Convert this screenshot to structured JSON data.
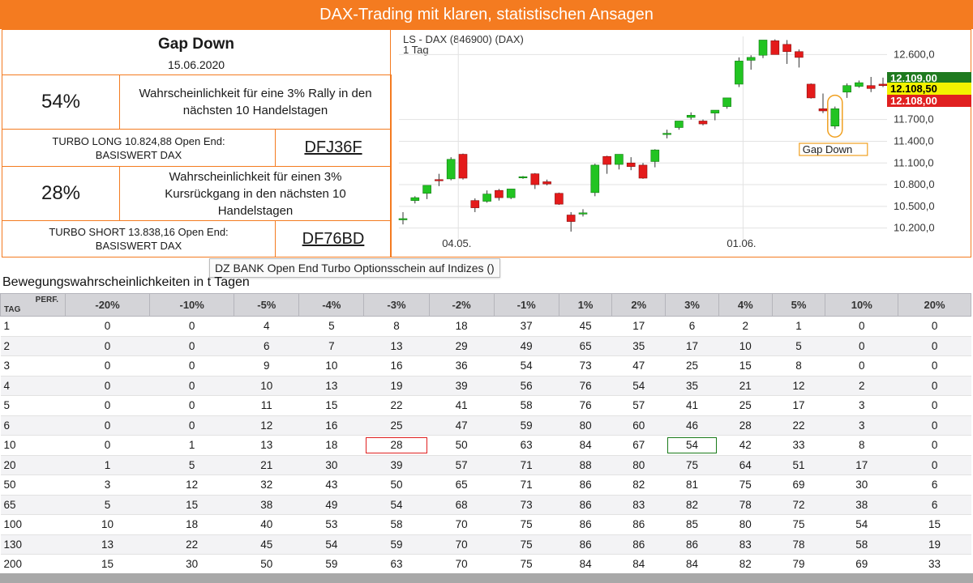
{
  "banner": {
    "title": "DAX-Trading mit klaren, statistischen Ansagen"
  },
  "summary": {
    "signal": "Gap Down",
    "date": "15.06.2020",
    "long": {
      "percent": "54%",
      "text": "Wahrscheinlichkeit für eine 3% Rally in den nächsten 10 Handelstagen",
      "product": "TURBO LONG 10.824,88 Open End: BASISWERT DAX",
      "wkn": "DFJ36F"
    },
    "short": {
      "percent": "28%",
      "text": "Wahrscheinlichkeit für einen 3% Kursrückgang in den nächsten 10 Handelstagen",
      "product": "TURBO SHORT 13.838,16 Open End: BASISWERT DAX",
      "wkn": "DF76BD"
    }
  },
  "tooltip": "DZ BANK Open End Turbo Optionsschein auf Indizes ()",
  "table": {
    "title": "Bewegungswahrscheinlichkeiten in t Tagen",
    "corner_top": "PERF.",
    "corner_bottom": "TAG",
    "columns": [
      "-20%",
      "-10%",
      "-5%",
      "-4%",
      "-3%",
      "-2%",
      "-1%",
      "1%",
      "2%",
      "3%",
      "4%",
      "5%",
      "10%",
      "20%"
    ],
    "rows": [
      {
        "tag": "1",
        "values": [
          "0",
          "0",
          "4",
          "5",
          "8",
          "18",
          "37",
          "45",
          "17",
          "6",
          "2",
          "1",
          "0",
          "0"
        ]
      },
      {
        "tag": "2",
        "values": [
          "0",
          "0",
          "6",
          "7",
          "13",
          "29",
          "49",
          "65",
          "35",
          "17",
          "10",
          "5",
          "0",
          "0"
        ]
      },
      {
        "tag": "3",
        "values": [
          "0",
          "0",
          "9",
          "10",
          "16",
          "36",
          "54",
          "73",
          "47",
          "25",
          "15",
          "8",
          "0",
          "0"
        ]
      },
      {
        "tag": "4",
        "values": [
          "0",
          "0",
          "10",
          "13",
          "19",
          "39",
          "56",
          "76",
          "54",
          "35",
          "21",
          "12",
          "2",
          "0"
        ]
      },
      {
        "tag": "5",
        "values": [
          "0",
          "0",
          "11",
          "15",
          "22",
          "41",
          "58",
          "76",
          "57",
          "41",
          "25",
          "17",
          "3",
          "0"
        ]
      },
      {
        "tag": "6",
        "values": [
          "0",
          "0",
          "12",
          "16",
          "25",
          "47",
          "59",
          "80",
          "60",
          "46",
          "28",
          "22",
          "3",
          "0"
        ]
      },
      {
        "tag": "10",
        "values": [
          "0",
          "1",
          "13",
          "18",
          "28",
          "50",
          "63",
          "84",
          "67",
          "54",
          "42",
          "33",
          "8",
          "0"
        ]
      },
      {
        "tag": "20",
        "values": [
          "1",
          "5",
          "21",
          "30",
          "39",
          "57",
          "71",
          "88",
          "80",
          "75",
          "64",
          "51",
          "17",
          "0"
        ]
      },
      {
        "tag": "50",
        "values": [
          "3",
          "12",
          "32",
          "43",
          "50",
          "65",
          "71",
          "86",
          "82",
          "81",
          "75",
          "69",
          "30",
          "6"
        ]
      },
      {
        "tag": "65",
        "values": [
          "5",
          "15",
          "38",
          "49",
          "54",
          "68",
          "73",
          "86",
          "83",
          "82",
          "78",
          "72",
          "38",
          "6"
        ]
      },
      {
        "tag": "100",
        "values": [
          "10",
          "18",
          "40",
          "53",
          "58",
          "70",
          "75",
          "86",
          "86",
          "85",
          "80",
          "75",
          "54",
          "15"
        ]
      },
      {
        "tag": "130",
        "values": [
          "13",
          "22",
          "45",
          "54",
          "59",
          "70",
          "75",
          "86",
          "86",
          "86",
          "83",
          "78",
          "58",
          "19"
        ]
      },
      {
        "tag": "200",
        "values": [
          "15",
          "30",
          "50",
          "59",
          "63",
          "70",
          "75",
          "84",
          "84",
          "84",
          "82",
          "79",
          "69",
          "33"
        ]
      }
    ],
    "highlights": [
      {
        "row": 6,
        "col": 4,
        "color": "#e02020"
      },
      {
        "row": 6,
        "col": 9,
        "color": "#1a7a1a"
      }
    ]
  },
  "chart_data": {
    "type": "candlestick",
    "title": "LS - DAX (846900) (DAX)",
    "subtitle": "1 Tag",
    "x_ticks": [
      "04.05.",
      "01.06."
    ],
    "y_ticks": [
      "12.600,0",
      "11.700,0",
      "11.400,0",
      "11.100,0",
      "10.800,0",
      "10.500,0",
      "10.200,0"
    ],
    "ylim": [
      10050,
      12850
    ],
    "price_labels": [
      {
        "label": "12.109,00",
        "value": 12109,
        "color": "#1f7a1f",
        "text_color": "#ffffff"
      },
      {
        "label": "12.108,50",
        "value": 12108.5,
        "color": "#f2f200",
        "text_color": "#000000"
      },
      {
        "label": "12.108,00",
        "value": 12108,
        "color": "#e02020",
        "text_color": "#ffffff"
      }
    ],
    "annotation": "Gap Down",
    "candles": [
      {
        "o": 10330,
        "h": 10420,
        "l": 10250,
        "c": 10330
      },
      {
        "o": 10580,
        "h": 10640,
        "l": 10540,
        "c": 10620
      },
      {
        "o": 10680,
        "h": 10780,
        "l": 10600,
        "c": 10790
      },
      {
        "o": 10870,
        "h": 10950,
        "l": 10780,
        "c": 10860
      },
      {
        "o": 10880,
        "h": 11180,
        "l": 10860,
        "c": 11150
      },
      {
        "o": 11220,
        "h": 11230,
        "l": 10870,
        "c": 10890
      },
      {
        "o": 10580,
        "h": 10610,
        "l": 10420,
        "c": 10480
      },
      {
        "o": 10570,
        "h": 10720,
        "l": 10550,
        "c": 10670
      },
      {
        "o": 10720,
        "h": 10740,
        "l": 10580,
        "c": 10620
      },
      {
        "o": 10620,
        "h": 10740,
        "l": 10600,
        "c": 10740
      },
      {
        "o": 10900,
        "h": 10920,
        "l": 10880,
        "c": 10910
      },
      {
        "o": 10950,
        "h": 10960,
        "l": 10740,
        "c": 10800
      },
      {
        "o": 10840,
        "h": 10870,
        "l": 10790,
        "c": 10810
      },
      {
        "o": 10680,
        "h": 10690,
        "l": 10520,
        "c": 10530
      },
      {
        "o": 10380,
        "h": 10420,
        "l": 10150,
        "c": 10290
      },
      {
        "o": 10410,
        "h": 10460,
        "l": 10360,
        "c": 10410
      },
      {
        "o": 10690,
        "h": 11090,
        "l": 10640,
        "c": 11070
      },
      {
        "o": 11190,
        "h": 11200,
        "l": 10950,
        "c": 11080
      },
      {
        "o": 11080,
        "h": 11220,
        "l": 11010,
        "c": 11220
      },
      {
        "o": 11100,
        "h": 11180,
        "l": 11000,
        "c": 11050
      },
      {
        "o": 11070,
        "h": 11100,
        "l": 10880,
        "c": 10890
      },
      {
        "o": 11120,
        "h": 11290,
        "l": 11040,
        "c": 11280
      },
      {
        "o": 11500,
        "h": 11560,
        "l": 11440,
        "c": 11510
      },
      {
        "o": 11590,
        "h": 11680,
        "l": 11560,
        "c": 11680
      },
      {
        "o": 11730,
        "h": 11800,
        "l": 11700,
        "c": 11760
      },
      {
        "o": 11680,
        "h": 11700,
        "l": 11620,
        "c": 11640
      },
      {
        "o": 11790,
        "h": 11830,
        "l": 11690,
        "c": 11830
      },
      {
        "o": 11880,
        "h": 12000,
        "l": 11850,
        "c": 12000
      },
      {
        "o": 12190,
        "h": 12560,
        "l": 12150,
        "c": 12510
      },
      {
        "o": 12520,
        "h": 12590,
        "l": 12390,
        "c": 12560
      },
      {
        "o": 12590,
        "h": 12780,
        "l": 12550,
        "c": 12800
      },
      {
        "o": 12790,
        "h": 12810,
        "l": 12620,
        "c": 12600
      },
      {
        "o": 12740,
        "h": 12800,
        "l": 12470,
        "c": 12640
      },
      {
        "o": 12640,
        "h": 12670,
        "l": 12420,
        "c": 12560
      },
      {
        "o": 12190,
        "h": 12200,
        "l": 11990,
        "c": 12000
      },
      {
        "o": 11850,
        "h": 12060,
        "l": 11790,
        "c": 11820
      },
      {
        "o": 11610,
        "h": 11880,
        "l": 11570,
        "c": 11850
      },
      {
        "o": 12080,
        "h": 12200,
        "l": 12000,
        "c": 12170
      },
      {
        "o": 12160,
        "h": 12240,
        "l": 12140,
        "c": 12210
      },
      {
        "o": 12170,
        "h": 12290,
        "l": 12080,
        "c": 12130
      },
      {
        "o": 12190,
        "h": 12280,
        "l": 12150,
        "c": 12170
      }
    ]
  }
}
